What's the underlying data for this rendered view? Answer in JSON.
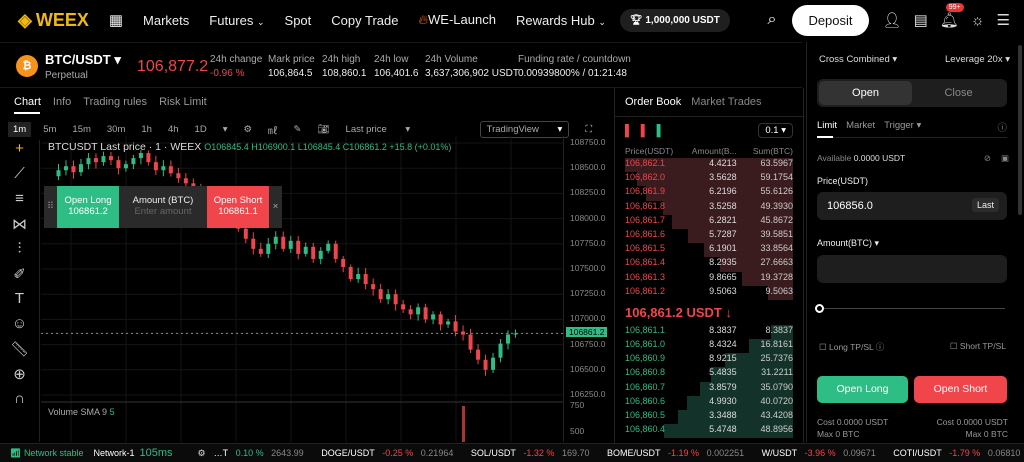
{
  "nav": {
    "logo": "WEEX",
    "items": [
      "Markets",
      "Futures",
      "Spot",
      "Copy Trade",
      "WE-Launch",
      "Rewards Hub"
    ],
    "prize": "1,000,000 USDT",
    "deposit": "Deposit",
    "badge": "99+"
  },
  "ticker": {
    "symbol": "BTC/USDT",
    "type": "Perpetual",
    "price": "106,877.2",
    "stats": [
      {
        "label": "24h change",
        "value": "-0.96 %",
        "color": "red"
      },
      {
        "label": "Mark price",
        "value": "106,864.5"
      },
      {
        "label": "24h high",
        "value": "108,860.1"
      },
      {
        "label": "24h low",
        "value": "106,401.6"
      },
      {
        "label": "24h Volume",
        "value": "3,637,306,902 USDT"
      },
      {
        "label": "Funding rate / countdown",
        "value": "0.00939800% / 01:21:48"
      }
    ]
  },
  "chart_tabs": [
    "Chart",
    "Info",
    "Trading rules",
    "Risk Limit"
  ],
  "toolbar": {
    "intervals": [
      "1m",
      "5m",
      "15m",
      "30m",
      "1h",
      "4h",
      "1D"
    ],
    "price_type": "Last price",
    "view": "TradingView"
  },
  "chart_data": {
    "type": "candlestick",
    "title": "BTCUSDT Last price · 1 · WEEX",
    "ohlc_legend": "O106845.4 H106900.1 L106845.4 C106861.2 +15.8 (+0.01%)",
    "y_ticks": [
      "108750.0",
      "108500.0",
      "108250.0",
      "108000.0",
      "107750.0",
      "107500.0",
      "107250.0",
      "107000.0",
      "106750.0",
      "106500.0",
      "106250.0"
    ],
    "ylim": [
      106250,
      108750
    ],
    "last_price": "106861.2",
    "closes": [
      108420,
      108480,
      108520,
      108460,
      108540,
      108600,
      108560,
      108620,
      108580,
      108500,
      108540,
      108600,
      108650,
      108560,
      108480,
      108520,
      108450,
      108400,
      108350,
      108300,
      108250,
      108200,
      108150,
      108100,
      108000,
      107900,
      107800,
      107700,
      107650,
      107750,
      107820,
      107700,
      107780,
      107650,
      107720,
      107600,
      107680,
      107750,
      107600,
      107520,
      107400,
      107450,
      107350,
      107300,
      107200,
      107250,
      107150,
      107100,
      107050,
      107120,
      107000,
      107050,
      106950,
      106980,
      106880,
      106850,
      106700,
      106600,
      106500,
      106620,
      106760,
      106850,
      106861
    ],
    "volume_label": "Volume SMA 9",
    "volume_value": "5",
    "volume_ticks": [
      "750",
      "500"
    ]
  },
  "quick_order": {
    "long_label": "Open Long",
    "long_price": "106861.2",
    "amount_label": "Amount (BTC)",
    "amount_placeholder": "Enter amount",
    "short_label": "Open Short",
    "short_price": "106861.1"
  },
  "orderbook": {
    "tabs": [
      "Order Book",
      "Market Trades"
    ],
    "precision": "0.1",
    "headers": [
      "Price(USDT)",
      "Amount(B...",
      "Sum(BTC)"
    ],
    "asks": [
      [
        "106,862.1",
        "4.4213",
        "63.5967"
      ],
      [
        "106,862.0",
        "3.5628",
        "59.1754"
      ],
      [
        "106,861.9",
        "6.2196",
        "55.6126"
      ],
      [
        "106,861.8",
        "3.5258",
        "49.3930"
      ],
      [
        "106,861.7",
        "6.2821",
        "45.8672"
      ],
      [
        "106,861.6",
        "5.7287",
        "39.5851"
      ],
      [
        "106,861.5",
        "6.1901",
        "33.8564"
      ],
      [
        "106,861.4",
        "8.2935",
        "27.6663"
      ],
      [
        "106,861.3",
        "9.8665",
        "19.3728"
      ],
      [
        "106,861.2",
        "9.5063",
        "9.5063"
      ]
    ],
    "mid": "106,861.2 USDT ↓",
    "bids": [
      [
        "106,861.1",
        "8.3837",
        "8.3837"
      ],
      [
        "106,861.0",
        "8.4324",
        "16.8161"
      ],
      [
        "106,860.9",
        "8.9215",
        "25.7376"
      ],
      [
        "106,860.8",
        "5.4835",
        "31.2211"
      ],
      [
        "106,860.7",
        "3.8579",
        "35.0790"
      ],
      [
        "106,860.6",
        "4.9930",
        "40.0720"
      ],
      [
        "106,860.5",
        "3.3488",
        "43.4208"
      ],
      [
        "106,860.4",
        "5.4748",
        "48.8956"
      ]
    ]
  },
  "order_panel": {
    "margin_mode": "Cross Combined",
    "leverage": "Leverage 20x",
    "open": "Open",
    "close": "Close",
    "types": [
      "Limit",
      "Market",
      "Trigger"
    ],
    "available_label": "Available",
    "available": "0.0000 USDT",
    "price_label": "Price(USDT)",
    "price": "106856.0",
    "last": "Last",
    "amount_label": "Amount(BTC)",
    "slider_percent": 0,
    "long_tpsl": "Long TP/SL",
    "short_tpsl": "Short TP/SL",
    "open_long": "Open Long",
    "open_short": "Open Short",
    "cost_long": "Cost 0.0000 USDT",
    "cost_short": "Cost 0.0000 USDT",
    "max_long": "Max 0 BTC",
    "max_short": "Max 0 BTC"
  },
  "status": {
    "network": "Network stable",
    "node": "Network-1",
    "latency": "105ms",
    "tickers": [
      [
        "…T",
        "0.10 %",
        "2643.99",
        "green"
      ],
      [
        "DOGE/USDT",
        "-0.25 %",
        "0.21964",
        "red"
      ],
      [
        "SOL/USDT",
        "-1.32 %",
        "169.70",
        "red"
      ],
      [
        "BOME/USDT",
        "-1.19 %",
        "0.002251",
        "red"
      ],
      [
        "W/USDT",
        "-3.96 %",
        "0.09671",
        "red"
      ],
      [
        "COTI/USDT",
        "-1.79 %",
        "0.06810",
        "red"
      ],
      [
        "SPE…",
        "",
        "",
        " "
      ]
    ]
  },
  "colors": {
    "up": "#2ebd85",
    "down": "#f0454a",
    "brand": "#f0b90b"
  }
}
